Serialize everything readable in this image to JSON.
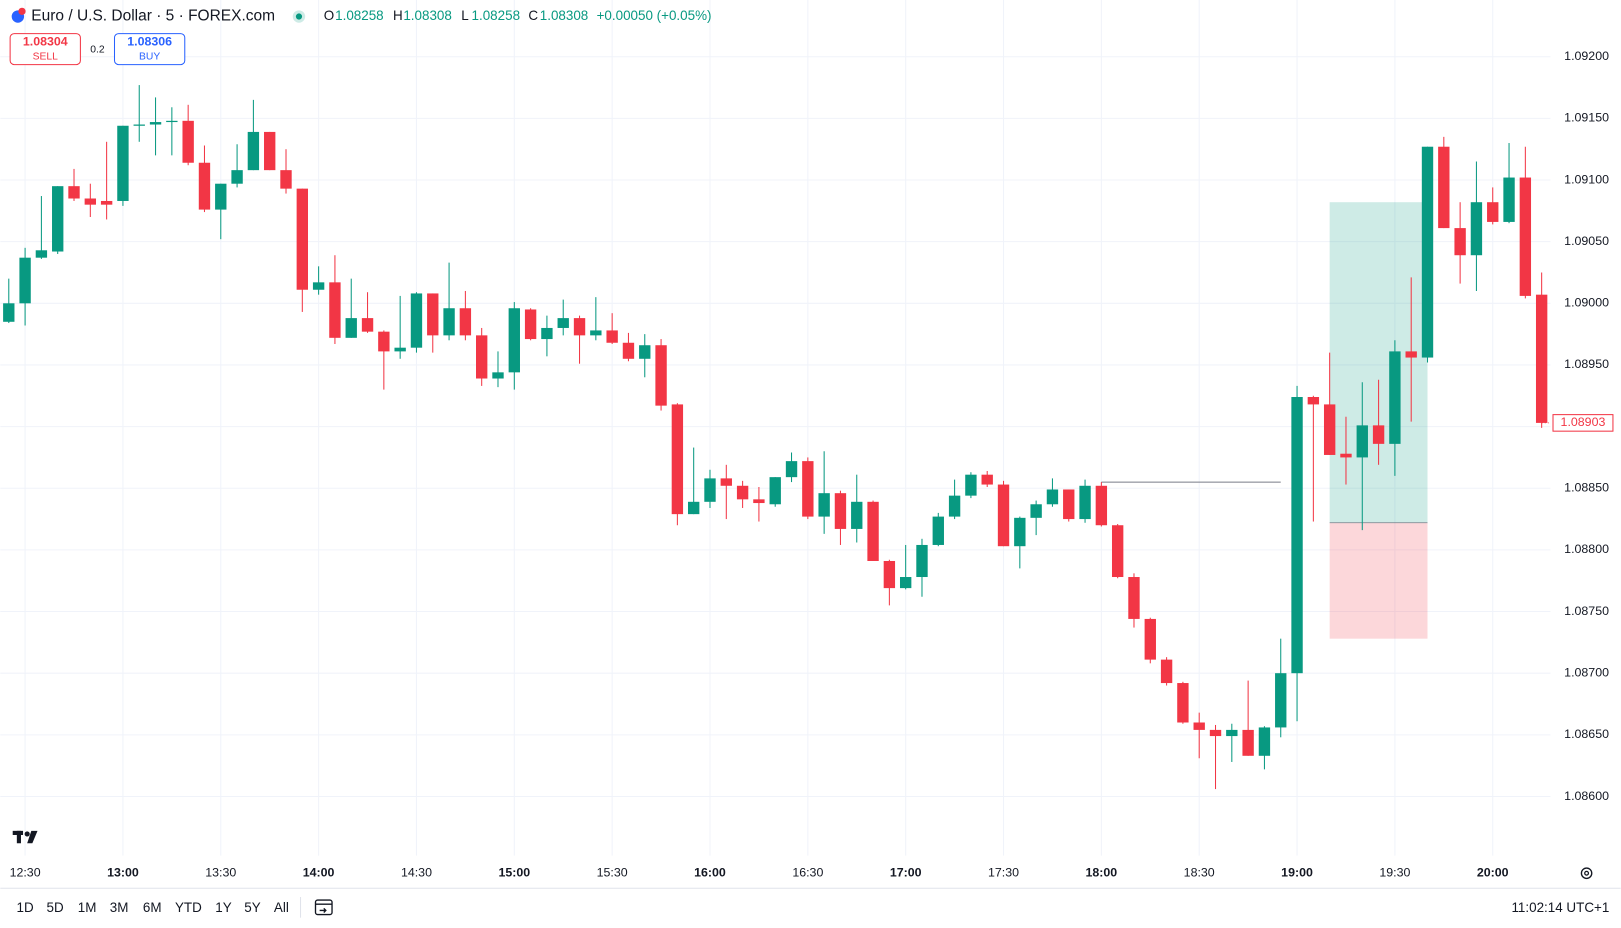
{
  "header": {
    "symbol": "Euro / U.S. Dollar · 5 · FOREX.com",
    "ohlc": [
      {
        "key": "O",
        "value": "1.08258"
      },
      {
        "key": "H",
        "value": "1.08308"
      },
      {
        "key": "L",
        "value": "1.08258"
      },
      {
        "key": "C",
        "value": "1.08308"
      }
    ],
    "change": "+0.00050 (+0.05%)"
  },
  "trade": {
    "sell_price": "1.08304",
    "sell": "SELL",
    "spread": "0.2",
    "buy_price": "1.08306",
    "buy": "BUY"
  },
  "chart_data": {
    "type": "candlestick",
    "up_color": "#089981",
    "down_color": "#f23645",
    "x": [
      "12:25",
      "12:30",
      "12:35",
      "12:40",
      "12:45",
      "12:50",
      "12:55",
      "13:00",
      "13:05",
      "13:10",
      "13:15",
      "13:20",
      "13:25",
      "13:30",
      "13:35",
      "13:40",
      "13:45",
      "13:50",
      "13:55",
      "14:00",
      "14:05",
      "14:10",
      "14:15",
      "14:20",
      "14:25",
      "14:30",
      "14:35",
      "14:40",
      "14:45",
      "14:50",
      "14:55",
      "15:00",
      "15:05",
      "15:10",
      "15:15",
      "15:20",
      "15:25",
      "15:30",
      "15:35",
      "15:40",
      "15:45",
      "15:50",
      "15:55",
      "16:00",
      "16:05",
      "16:10",
      "16:15",
      "16:20",
      "16:25",
      "16:30",
      "16:35",
      "16:40",
      "16:45",
      "16:50",
      "16:55",
      "17:00",
      "17:05",
      "17:10",
      "17:15",
      "17:20",
      "17:25",
      "17:30",
      "17:35",
      "17:40",
      "17:45",
      "17:50",
      "17:55",
      "18:00",
      "18:05",
      "18:10",
      "18:15",
      "18:20",
      "18:25",
      "18:30",
      "18:35",
      "18:40",
      "18:45",
      "18:50",
      "18:55",
      "19:00",
      "19:05",
      "19:10",
      "19:15",
      "19:20",
      "19:25",
      "19:30",
      "19:35",
      "19:40",
      "19:45",
      "19:50",
      "19:55",
      "20:00",
      "20:05",
      "20:10",
      "20:15"
    ],
    "open": [
      1.08985,
      1.09,
      1.09037,
      1.09042,
      1.09095,
      1.09085,
      1.09083,
      1.09083,
      1.09144,
      1.09145,
      1.09147,
      1.09148,
      1.09114,
      1.09076,
      1.09097,
      1.09108,
      1.09139,
      1.09108,
      1.09093,
      1.09011,
      1.09017,
      1.08972,
      1.08988,
      1.08977,
      1.08961,
      1.08964,
      1.09008,
      1.08974,
      1.08996,
      1.08974,
      1.08939,
      1.08944,
      1.08995,
      1.08971,
      1.0898,
      1.08988,
      1.08974,
      1.08978,
      1.08968,
      1.08955,
      1.08966,
      1.08918,
      1.08829,
      1.08839,
      1.08858,
      1.08852,
      1.08841,
      1.08837,
      1.08859,
      1.08872,
      1.08827,
      1.08846,
      1.08817,
      1.08839,
      1.08791,
      1.08769,
      1.08778,
      1.08804,
      1.08827,
      1.08844,
      1.08861,
      1.08853,
      1.08803,
      1.08826,
      1.08837,
      1.08849,
      1.08825,
      1.08852,
      1.0882,
      1.08778,
      1.08744,
      1.08711,
      1.08692,
      1.0866,
      1.08654,
      1.08649,
      1.08654,
      1.08633,
      1.08656,
      1.087,
      1.08924,
      1.08918,
      1.08878,
      1.08875,
      1.08901,
      1.08886,
      1.08961,
      1.08956,
      1.09127,
      1.09061,
      1.09039,
      1.09082,
      1.09066,
      1.09102,
      1.09007
    ],
    "high": [
      1.0902,
      1.09045,
      1.09087,
      1.09095,
      1.09109,
      1.09097,
      1.09131,
      1.09144,
      1.09177,
      1.09167,
      1.09159,
      1.09161,
      1.09128,
      1.09097,
      1.09129,
      1.09165,
      1.09139,
      1.09125,
      1.09093,
      1.0903,
      1.09039,
      1.0902,
      1.09009,
      1.08978,
      1.09006,
      1.09009,
      1.09008,
      1.09033,
      1.0901,
      1.0898,
      1.08961,
      1.09001,
      1.08996,
      1.0899,
      1.09003,
      1.0899,
      1.09005,
      1.08992,
      1.08976,
      1.08975,
      1.08971,
      1.08919,
      1.08883,
      1.08865,
      1.08869,
      1.08856,
      1.08851,
      1.08859,
      1.08879,
      1.08875,
      1.0888,
      1.08848,
      1.08861,
      1.0884,
      1.08792,
      1.08804,
      1.08809,
      1.0883,
      1.08857,
      1.08863,
      1.08864,
      1.08856,
      1.08827,
      1.0884,
      1.08858,
      1.08849,
      1.08857,
      1.08855,
      1.08821,
      1.08781,
      1.08745,
      1.08713,
      1.08693,
      1.08668,
      1.08658,
      1.08659,
      1.08694,
      1.08657,
      1.08728,
      1.08933,
      1.08925,
      1.0896,
      1.08908,
      1.08936,
      1.08938,
      1.0897,
      1.09021,
      1.09127,
      1.09135,
      1.09082,
      1.09115,
      1.09094,
      1.0913,
      1.09127,
      1.09025
    ],
    "low": [
      1.08984,
      1.08982,
      1.09036,
      1.0904,
      1.09083,
      1.0907,
      1.09068,
      1.09079,
      1.09131,
      1.0912,
      1.0912,
      1.09112,
      1.09074,
      1.09052,
      1.09094,
      1.09108,
      1.09108,
      1.09089,
      1.08993,
      1.09007,
      1.08967,
      1.08972,
      1.08976,
      1.0893,
      1.08955,
      1.0896,
      1.0896,
      1.0897,
      1.0897,
      1.08933,
      1.08932,
      1.0893,
      1.0897,
      1.08957,
      1.08974,
      1.08951,
      1.0897,
      1.08967,
      1.08953,
      1.0894,
      1.08913,
      1.0882,
      1.08829,
      1.08834,
      1.08825,
      1.08834,
      1.08823,
      1.08835,
      1.08855,
      1.08825,
      1.08813,
      1.08804,
      1.08806,
      1.08791,
      1.08755,
      1.08768,
      1.08762,
      1.08803,
      1.08825,
      1.08842,
      1.08851,
      1.08803,
      1.08785,
      1.08812,
      1.08835,
      1.08823,
      1.08822,
      1.08819,
      1.08777,
      1.08737,
      1.08708,
      1.0869,
      1.08659,
      1.08631,
      1.08606,
      1.08628,
      1.08633,
      1.08622,
      1.08648,
      1.08661,
      1.08823,
      1.08877,
      1.08853,
      1.08816,
      1.08869,
      1.0886,
      1.08904,
      1.08952,
      1.09061,
      1.09016,
      1.0901,
      1.09064,
      1.09065,
      1.09004,
      1.08899
    ],
    "close": [
      1.09,
      1.09037,
      1.09043,
      1.09095,
      1.09085,
      1.0908,
      1.0908,
      1.09144,
      1.09145,
      1.09147,
      1.09148,
      1.09114,
      1.09076,
      1.09097,
      1.09108,
      1.09139,
      1.09108,
      1.09093,
      1.09011,
      1.09017,
      1.08972,
      1.08988,
      1.08977,
      1.08961,
      1.08964,
      1.09008,
      1.08974,
      1.08996,
      1.08974,
      1.08939,
      1.08944,
      1.08996,
      1.08971,
      1.0898,
      1.08988,
      1.08974,
      1.08978,
      1.08968,
      1.08955,
      1.08966,
      1.08917,
      1.08829,
      1.08839,
      1.08858,
      1.08852,
      1.08841,
      1.08838,
      1.08859,
      1.08872,
      1.08827,
      1.08846,
      1.08817,
      1.08839,
      1.08791,
      1.08769,
      1.08778,
      1.08804,
      1.08827,
      1.08844,
      1.08861,
      1.08853,
      1.08803,
      1.08826,
      1.08837,
      1.08849,
      1.08825,
      1.08852,
      1.0882,
      1.08778,
      1.08744,
      1.08711,
      1.08692,
      1.0866,
      1.08654,
      1.08649,
      1.08654,
      1.08633,
      1.08656,
      1.087,
      1.08924,
      1.08918,
      1.08877,
      1.08875,
      1.08901,
      1.08886,
      1.08961,
      1.08956,
      1.09127,
      1.09061,
      1.09039,
      1.09082,
      1.09066,
      1.09102,
      1.09006,
      1.08903
    ],
    "ylim": [
      1.08552,
      1.09246
    ],
    "yticks": [
      {
        "value": 1.092,
        "label": "1.09200"
      },
      {
        "value": 1.0915,
        "label": "1.09150"
      },
      {
        "value": 1.091,
        "label": "1.09100"
      },
      {
        "value": 1.0905,
        "label": "1.09050"
      },
      {
        "value": 1.09,
        "label": "1.09000"
      },
      {
        "value": 1.0895,
        "label": "1.08950"
      },
      {
        "value": 1.089,
        "label": "1.08900"
      },
      {
        "value": 1.0885,
        "label": "1.08850"
      },
      {
        "value": 1.088,
        "label": "1.08800"
      },
      {
        "value": 1.0875,
        "label": "1.08750"
      },
      {
        "value": 1.087,
        "label": "1.08700"
      },
      {
        "value": 1.0865,
        "label": "1.08650"
      },
      {
        "value": 1.086,
        "label": "1.08600"
      }
    ],
    "xticks": [
      "12:30",
      "13:00",
      "13:30",
      "14:00",
      "14:30",
      "15:00",
      "15:30",
      "16:00",
      "16:30",
      "17:00",
      "17:30",
      "18:00",
      "18:30",
      "19:00",
      "19:30",
      "20:00"
    ],
    "grid": true,
    "position": {
      "start": "19:10",
      "end": "19:40",
      "entry": 1.08822,
      "target": 1.09082,
      "stop": 1.08728
    },
    "hline": {
      "value": 1.08855,
      "from": "18:00",
      "to": "18:55"
    }
  },
  "ranges": [
    "1D",
    "5D",
    "1M",
    "3M",
    "6M",
    "YTD",
    "1Y",
    "5Y",
    "All"
  ],
  "clock": "11:02:14 UTC+1"
}
